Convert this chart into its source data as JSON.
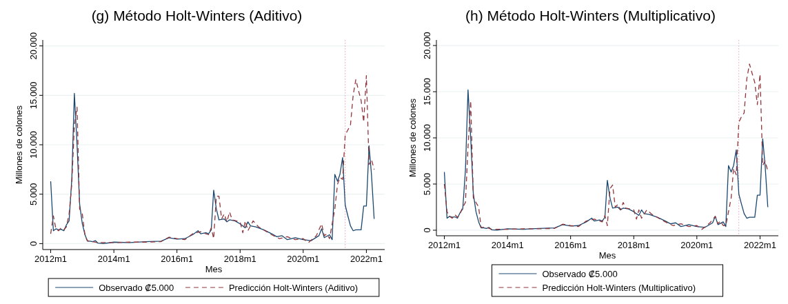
{
  "chart_data": [
    {
      "type": "line",
      "title": "(g) Método Holt-Winters (Aditivo)",
      "xlabel": "Mes",
      "ylabel": "Millones de colones",
      "xlim": [
        "2011-10",
        "2022-08"
      ],
      "xticks": [
        {
          "value": "2012-01",
          "label": "2012m1"
        },
        {
          "value": "2014-01",
          "label": "2014m1"
        },
        {
          "value": "2016-01",
          "label": "2016m1"
        },
        {
          "value": "2018-01",
          "label": "2018m1"
        },
        {
          "value": "2020-01",
          "label": "2020m1"
        },
        {
          "value": "2022-01",
          "label": "2022m1"
        }
      ],
      "ylim": [
        -600,
        20600
      ],
      "yticks": [
        0,
        {
          "value": 5000,
          "label": "5.000"
        },
        {
          "value": 10000,
          "label": "10.000"
        },
        {
          "value": 15000,
          "label": "15.000"
        },
        {
          "value": 20000,
          "label": "20.000"
        }
      ],
      "grid": "y",
      "legend": "bottom",
      "ref_lines": [
        {
          "axis": "x",
          "value": "2021-05",
          "color": "#e8a0b0",
          "line_style": "dotted"
        }
      ],
      "series": [
        {
          "name": "Observado ₡5.000",
          "color": "#1a476f",
          "line_style": "solid",
          "x": [
            "2012-01",
            "2012-02",
            "2012-03",
            "2012-04",
            "2012-05",
            "2012-06",
            "2012-07",
            "2012-08",
            "2012-09",
            "2012-10",
            "2012-11",
            "2012-12",
            "2013-01",
            "2013-02",
            "2013-03",
            "2013-04",
            "2013-05",
            "2013-06",
            "2013-07",
            "2013-09",
            "2014-01",
            "2014-07",
            "2015-01",
            "2015-07",
            "2015-10",
            "2016-01",
            "2016-04",
            "2016-07",
            "2016-09",
            "2016-10",
            "2016-12",
            "2017-01",
            "2017-02",
            "2017-03",
            "2017-04",
            "2017-05",
            "2017-07",
            "2017-08",
            "2017-09",
            "2017-11",
            "2018-01",
            "2018-03",
            "2018-04",
            "2018-05",
            "2018-07",
            "2018-10",
            "2019-01",
            "2019-03",
            "2019-05",
            "2019-07",
            "2019-10",
            "2020-01",
            "2020-04",
            "2020-07",
            "2020-08",
            "2020-09",
            "2020-11",
            "2020-12",
            "2021-01",
            "2021-02",
            "2021-03",
            "2021-04",
            "2021-05",
            "2021-06",
            "2021-07",
            "2021-08",
            "2021-09",
            "2021-11",
            "2021-12",
            "2022-01",
            "2022-02",
            "2022-03",
            "2022-04"
          ],
          "values": [
            6300,
            1300,
            1500,
            1400,
            1450,
            1300,
            1900,
            2300,
            6500,
            15200,
            10000,
            4000,
            2000,
            900,
            250,
            250,
            200,
            300,
            50,
            0,
            150,
            100,
            200,
            250,
            600,
            450,
            500,
            900,
            1300,
            1000,
            1100,
            1000,
            1400,
            5400,
            3500,
            2400,
            2500,
            2200,
            2400,
            2300,
            2000,
            1600,
            2200,
            1800,
            1700,
            1400,
            1000,
            700,
            800,
            400,
            600,
            400,
            300,
            800,
            1500,
            600,
            900,
            400,
            7000,
            6300,
            7000,
            8700,
            3900,
            2800,
            1800,
            1300,
            1400,
            1400,
            3800,
            3800,
            9900,
            7000,
            2500
          ]
        },
        {
          "name": "Predicción Holt-Winters (Aditivo)",
          "color": "#90353b",
          "line_style": "dashed",
          "x": [
            "2012-01",
            "2012-02",
            "2012-03",
            "2012-04",
            "2012-05",
            "2012-06",
            "2012-07",
            "2012-08",
            "2012-09",
            "2012-10",
            "2012-11",
            "2012-12",
            "2013-01",
            "2013-02",
            "2013-03",
            "2013-05",
            "2013-07",
            "2014-01",
            "2014-07",
            "2015-01",
            "2015-07",
            "2015-10",
            "2016-01",
            "2016-04",
            "2016-07",
            "2016-10",
            "2017-01",
            "2017-02",
            "2017-03",
            "2017-04",
            "2017-05",
            "2017-06",
            "2017-07",
            "2017-08",
            "2017-09",
            "2017-10",
            "2018-01",
            "2018-02",
            "2018-03",
            "2018-04",
            "2018-06",
            "2018-08",
            "2019-01",
            "2019-04",
            "2019-07",
            "2019-10",
            "2020-01",
            "2020-03",
            "2020-06",
            "2020-08",
            "2020-09",
            "2020-10",
            "2020-11",
            "2020-12",
            "2021-01",
            "2021-02",
            "2021-03",
            "2021-04",
            "2021-05",
            "2021-06",
            "2021-07",
            "2021-08",
            "2021-09",
            "2021-10",
            "2021-11",
            "2021-12",
            "2022-01",
            "2022-02",
            "2022-03",
            "2022-04"
          ],
          "values": [
            1000,
            2800,
            1500,
            1300,
            1600,
            1400,
            1700,
            3000,
            6000,
            12000,
            13800,
            3500,
            3000,
            800,
            300,
            200,
            100,
            100,
            150,
            150,
            200,
            650,
            500,
            400,
            1000,
            1200,
            900,
            1600,
            500,
            4800,
            4800,
            2500,
            3000,
            2200,
            3200,
            2400,
            2200,
            1100,
            2300,
            1300,
            2300,
            1700,
            900,
            500,
            700,
            400,
            500,
            100,
            800,
            2000,
            800,
            1000,
            500,
            2000,
            3500,
            6000,
            6700,
            6500,
            11000,
            11500,
            12000,
            15000,
            16600,
            15500,
            14500,
            12300,
            17000,
            8000,
            8500,
            7500
          ]
        }
      ]
    },
    {
      "type": "line",
      "title": "(h) Método Holt-Winters (Multiplicativo)",
      "xlabel": "Mes",
      "ylabel": "Millones de colones",
      "xlim": [
        "2011-10",
        "2022-08"
      ],
      "xticks": [
        {
          "value": "2012-01",
          "label": "2012m1"
        },
        {
          "value": "2014-01",
          "label": "2014m1"
        },
        {
          "value": "2016-01",
          "label": "2016m1"
        },
        {
          "value": "2018-01",
          "label": "2018m1"
        },
        {
          "value": "2020-01",
          "label": "2020m1"
        },
        {
          "value": "2022-01",
          "label": "2022m1"
        }
      ],
      "ylim": [
        -600,
        20600
      ],
      "yticks": [
        0,
        {
          "value": 5000,
          "label": "5.000"
        },
        {
          "value": 10000,
          "label": "10.000"
        },
        {
          "value": 15000,
          "label": "15.000"
        },
        {
          "value": 20000,
          "label": "20.000"
        }
      ],
      "grid": "y",
      "legend": "bottom",
      "ref_lines": [
        {
          "axis": "x",
          "value": "2021-05",
          "color": "#e8a0b0",
          "line_style": "dotted"
        }
      ],
      "series": [
        {
          "name": "Observado ₡5.000",
          "color": "#1a476f",
          "line_style": "solid",
          "x": [
            "2012-01",
            "2012-02",
            "2012-03",
            "2012-04",
            "2012-05",
            "2012-06",
            "2012-07",
            "2012-08",
            "2012-09",
            "2012-10",
            "2012-11",
            "2012-12",
            "2013-01",
            "2013-02",
            "2013-03",
            "2013-04",
            "2013-05",
            "2013-06",
            "2013-07",
            "2013-09",
            "2014-01",
            "2014-07",
            "2015-01",
            "2015-07",
            "2015-10",
            "2016-01",
            "2016-04",
            "2016-07",
            "2016-09",
            "2016-10",
            "2016-12",
            "2017-01",
            "2017-02",
            "2017-03",
            "2017-04",
            "2017-05",
            "2017-07",
            "2017-08",
            "2017-09",
            "2017-11",
            "2018-01",
            "2018-03",
            "2018-04",
            "2018-05",
            "2018-07",
            "2018-10",
            "2019-01",
            "2019-03",
            "2019-05",
            "2019-07",
            "2019-10",
            "2020-01",
            "2020-04",
            "2020-07",
            "2020-08",
            "2020-09",
            "2020-11",
            "2020-12",
            "2021-01",
            "2021-02",
            "2021-03",
            "2021-04",
            "2021-05",
            "2021-06",
            "2021-07",
            "2021-08",
            "2021-09",
            "2021-11",
            "2021-12",
            "2022-01",
            "2022-02",
            "2022-03",
            "2022-04"
          ],
          "values": [
            6300,
            1300,
            1500,
            1400,
            1450,
            1300,
            1900,
            2300,
            6500,
            15200,
            10000,
            4000,
            2000,
            900,
            250,
            250,
            200,
            300,
            50,
            0,
            150,
            100,
            200,
            250,
            600,
            450,
            500,
            900,
            1300,
            1000,
            1100,
            1000,
            1400,
            5400,
            3500,
            2400,
            2500,
            2200,
            2400,
            2300,
            2000,
            1600,
            2200,
            1800,
            1700,
            1400,
            1000,
            700,
            800,
            400,
            600,
            400,
            300,
            800,
            1500,
            600,
            900,
            400,
            7000,
            6300,
            7000,
            8700,
            3900,
            2800,
            1800,
            1300,
            1400,
            1400,
            3800,
            3800,
            9900,
            7000,
            2500
          ]
        },
        {
          "name": "Predicción Holt-Winters (Multiplicativo)",
          "color": "#90353b",
          "line_style": "dashed",
          "x": [
            "2012-01",
            "2012-02",
            "2012-03",
            "2012-04",
            "2012-05",
            "2012-06",
            "2012-07",
            "2012-08",
            "2012-09",
            "2012-10",
            "2012-11",
            "2012-12",
            "2013-01",
            "2013-02",
            "2013-03",
            "2013-05",
            "2013-07",
            "2014-01",
            "2014-07",
            "2015-01",
            "2015-07",
            "2015-10",
            "2016-01",
            "2016-04",
            "2016-07",
            "2016-10",
            "2017-01",
            "2017-02",
            "2017-03",
            "2017-04",
            "2017-05",
            "2017-06",
            "2017-07",
            "2017-08",
            "2017-09",
            "2017-10",
            "2018-01",
            "2018-02",
            "2018-03",
            "2018-04",
            "2018-06",
            "2018-08",
            "2019-01",
            "2019-04",
            "2019-07",
            "2019-10",
            "2020-01",
            "2020-03",
            "2020-06",
            "2020-08",
            "2020-09",
            "2020-10",
            "2020-11",
            "2020-12",
            "2021-01",
            "2021-02",
            "2021-03",
            "2021-04",
            "2021-05",
            "2021-06",
            "2021-07",
            "2021-08",
            "2021-09",
            "2021-10",
            "2021-11",
            "2021-12",
            "2022-01",
            "2022-02",
            "2022-03",
            "2022-04"
          ],
          "values": [
            5000,
            2000,
            1500,
            1300,
            1700,
            1400,
            1800,
            2500,
            3000,
            9000,
            14000,
            3500,
            3000,
            2500,
            300,
            300,
            100,
            100,
            150,
            150,
            200,
            650,
            500,
            400,
            1000,
            1200,
            900,
            1600,
            500,
            4500,
            4900,
            2500,
            2800,
            2200,
            3000,
            2400,
            2200,
            1200,
            2200,
            1300,
            2200,
            1700,
            900,
            500,
            700,
            400,
            500,
            100,
            800,
            1500,
            700,
            1000,
            500,
            500,
            2000,
            3500,
            6700,
            6000,
            11700,
            12300,
            12700,
            16400,
            18000,
            17000,
            16000,
            13600,
            16900,
            7000,
            7500,
            6400
          ]
        }
      ]
    }
  ]
}
